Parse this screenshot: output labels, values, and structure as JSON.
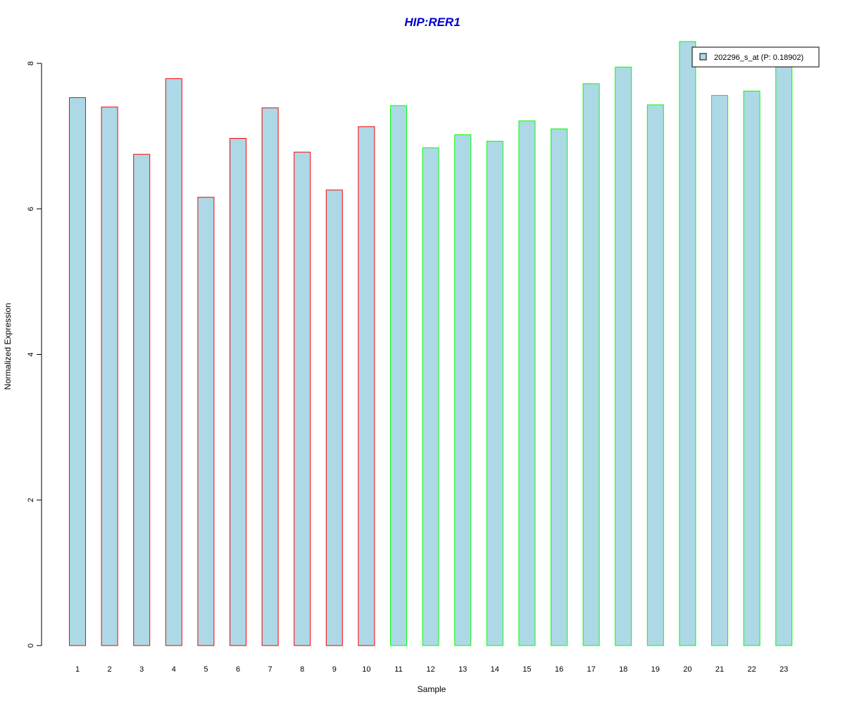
{
  "chart_data": {
    "type": "bar",
    "title": "HIP:RER1",
    "xlabel": "Sample",
    "ylabel": "Normalized Expression",
    "categories": [
      "1",
      "2",
      "3",
      "4",
      "5",
      "6",
      "7",
      "8",
      "9",
      "10",
      "11",
      "12",
      "13",
      "14",
      "15",
      "16",
      "17",
      "18",
      "19",
      "20",
      "21",
      "22",
      "23"
    ],
    "values": [
      7.53,
      7.4,
      6.75,
      7.79,
      6.16,
      6.97,
      7.39,
      6.78,
      6.26,
      7.13,
      7.42,
      6.84,
      7.02,
      6.93,
      7.21,
      7.1,
      7.72,
      7.95,
      7.43,
      8.3,
      7.56,
      7.62,
      8.02
    ],
    "group_colors": [
      "#ff0000",
      "#ff0000",
      "#ff0000",
      "#ff0000",
      "#ff0000",
      "#ff0000",
      "#ff0000",
      "#ff0000",
      "#ff0000",
      "#ff0000",
      "#00ff00",
      "#00ff00",
      "#00ff00",
      "#00ff00",
      "#00ff00",
      "#00ff00",
      "#00ff00",
      "#00ff00",
      "#00ff00",
      "#00ff00",
      "#00ff00",
      "#00ff00",
      "#00ff00"
    ],
    "yticks": [
      0,
      2,
      4,
      6,
      8
    ],
    "ylim": [
      0,
      8.3
    ],
    "grid": false,
    "legend": {
      "placement": "top-right",
      "entries": [
        {
          "label": "202296_s_at (P: 0.18902)",
          "color": "#add8e6"
        }
      ]
    },
    "colors": {
      "bar_fill": "#add8e6",
      "title": "#0000cd",
      "axis": "#000000"
    }
  }
}
